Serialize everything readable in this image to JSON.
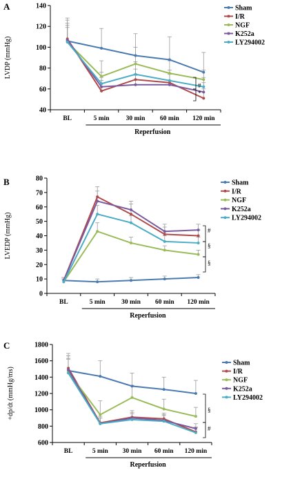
{
  "colors": {
    "Sham": "#4a7ab0",
    "I/R": "#b04a4a",
    "NGF": "#9bbb59",
    "K252a": "#7a5a9e",
    "LY294002": "#4bacc6",
    "axis": "#000000",
    "errorbar": "#9a9a9a"
  },
  "chart_data": [
    {
      "type": "line",
      "panel_letter": "A",
      "ylabel": "LVDP (mmHg)",
      "xlabel": "Reperfusion",
      "categories": [
        "BL",
        "5 min",
        "30 min",
        "60 min",
        "120 min"
      ],
      "ylim": [
        40,
        140
      ],
      "yticks": [
        40,
        60,
        80,
        100,
        120,
        140
      ],
      "legend_position": "top-right",
      "series": [
        {
          "name": "Sham",
          "values": [
            106,
            99,
            92,
            88,
            76
          ],
          "errors": [
            22,
            19,
            21,
            22,
            19
          ]
        },
        {
          "name": "I/R",
          "values": [
            108,
            58,
            69,
            66,
            51
          ],
          "errors": [
            18,
            10,
            10,
            9,
            9
          ]
        },
        {
          "name": "NGF",
          "values": [
            105,
            72,
            84,
            75,
            69
          ],
          "errors": [
            14,
            15,
            16,
            12,
            9
          ]
        },
        {
          "name": "K252a",
          "values": [
            107,
            62,
            64,
            64,
            57
          ],
          "errors": [
            16,
            9,
            9,
            10,
            9
          ]
        },
        {
          "name": "LY294002",
          "values": [
            105,
            65,
            74,
            68,
            62
          ],
          "errors": [
            16,
            11,
            12,
            10,
            9
          ]
        }
      ],
      "significance": [
        "#",
        "*"
      ]
    },
    {
      "type": "line",
      "panel_letter": "B",
      "ylabel": "LVEDP (mmHg)",
      "xlabel": "Reperfusion",
      "categories": [
        "BL",
        "5 min",
        "30 min",
        "60 min",
        "120 min"
      ],
      "ylim": [
        0,
        80
      ],
      "yticks": [
        0,
        10,
        20,
        30,
        40,
        50,
        60,
        70,
        80
      ],
      "legend_position": "top-right",
      "series": [
        {
          "name": "Sham",
          "values": [
            9,
            8,
            9,
            10,
            11
          ],
          "errors": [
            2,
            2,
            2,
            2,
            2
          ]
        },
        {
          "name": "I/R",
          "values": [
            9,
            67,
            55,
            41,
            40
          ],
          "errors": [
            2,
            7,
            7,
            5,
            4
          ]
        },
        {
          "name": "NGF",
          "values": [
            8,
            43,
            35,
            30,
            27
          ],
          "errors": [
            2,
            6,
            4,
            3,
            3
          ]
        },
        {
          "name": "K252a",
          "values": [
            9,
            64,
            58,
            43,
            44
          ],
          "errors": [
            2,
            7,
            6,
            5,
            4
          ]
        },
        {
          "name": "LY294002",
          "values": [
            8,
            55,
            49,
            36,
            35
          ],
          "errors": [
            2,
            6,
            5,
            4,
            4
          ]
        }
      ],
      "significance": [
        "#",
        "§",
        "§"
      ]
    },
    {
      "type": "line",
      "panel_letter": "C",
      "ylabel": "+dp/dt (mmHg/ms)",
      "xlabel": "Reperfusion",
      "categories": [
        "BL",
        "5 min",
        "30 min",
        "60 min",
        "120 min"
      ],
      "ylim": [
        600,
        1800
      ],
      "yticks": [
        600,
        800,
        1000,
        1200,
        1400,
        1600,
        1800
      ],
      "legend_position": "top-right",
      "series": [
        {
          "name": "Sham",
          "values": [
            1480,
            1410,
            1290,
            1250,
            1200
          ],
          "errors": [
            180,
            190,
            160,
            150,
            160
          ]
        },
        {
          "name": "I/R",
          "values": [
            1510,
            840,
            910,
            890,
            730
          ],
          "errors": [
            180,
            80,
            80,
            70,
            60
          ]
        },
        {
          "name": "NGF",
          "values": [
            1460,
            940,
            1150,
            1010,
            920
          ],
          "errors": [
            170,
            170,
            150,
            120,
            110
          ]
        },
        {
          "name": "K252a",
          "values": [
            1490,
            830,
            900,
            870,
            770
          ],
          "errors": [
            170,
            70,
            70,
            70,
            60
          ]
        },
        {
          "name": "LY294002",
          "values": [
            1450,
            830,
            880,
            860,
            720
          ],
          "errors": [
            170,
            70,
            70,
            70,
            60
          ]
        }
      ],
      "significance": [
        "§",
        "#"
      ]
    }
  ]
}
